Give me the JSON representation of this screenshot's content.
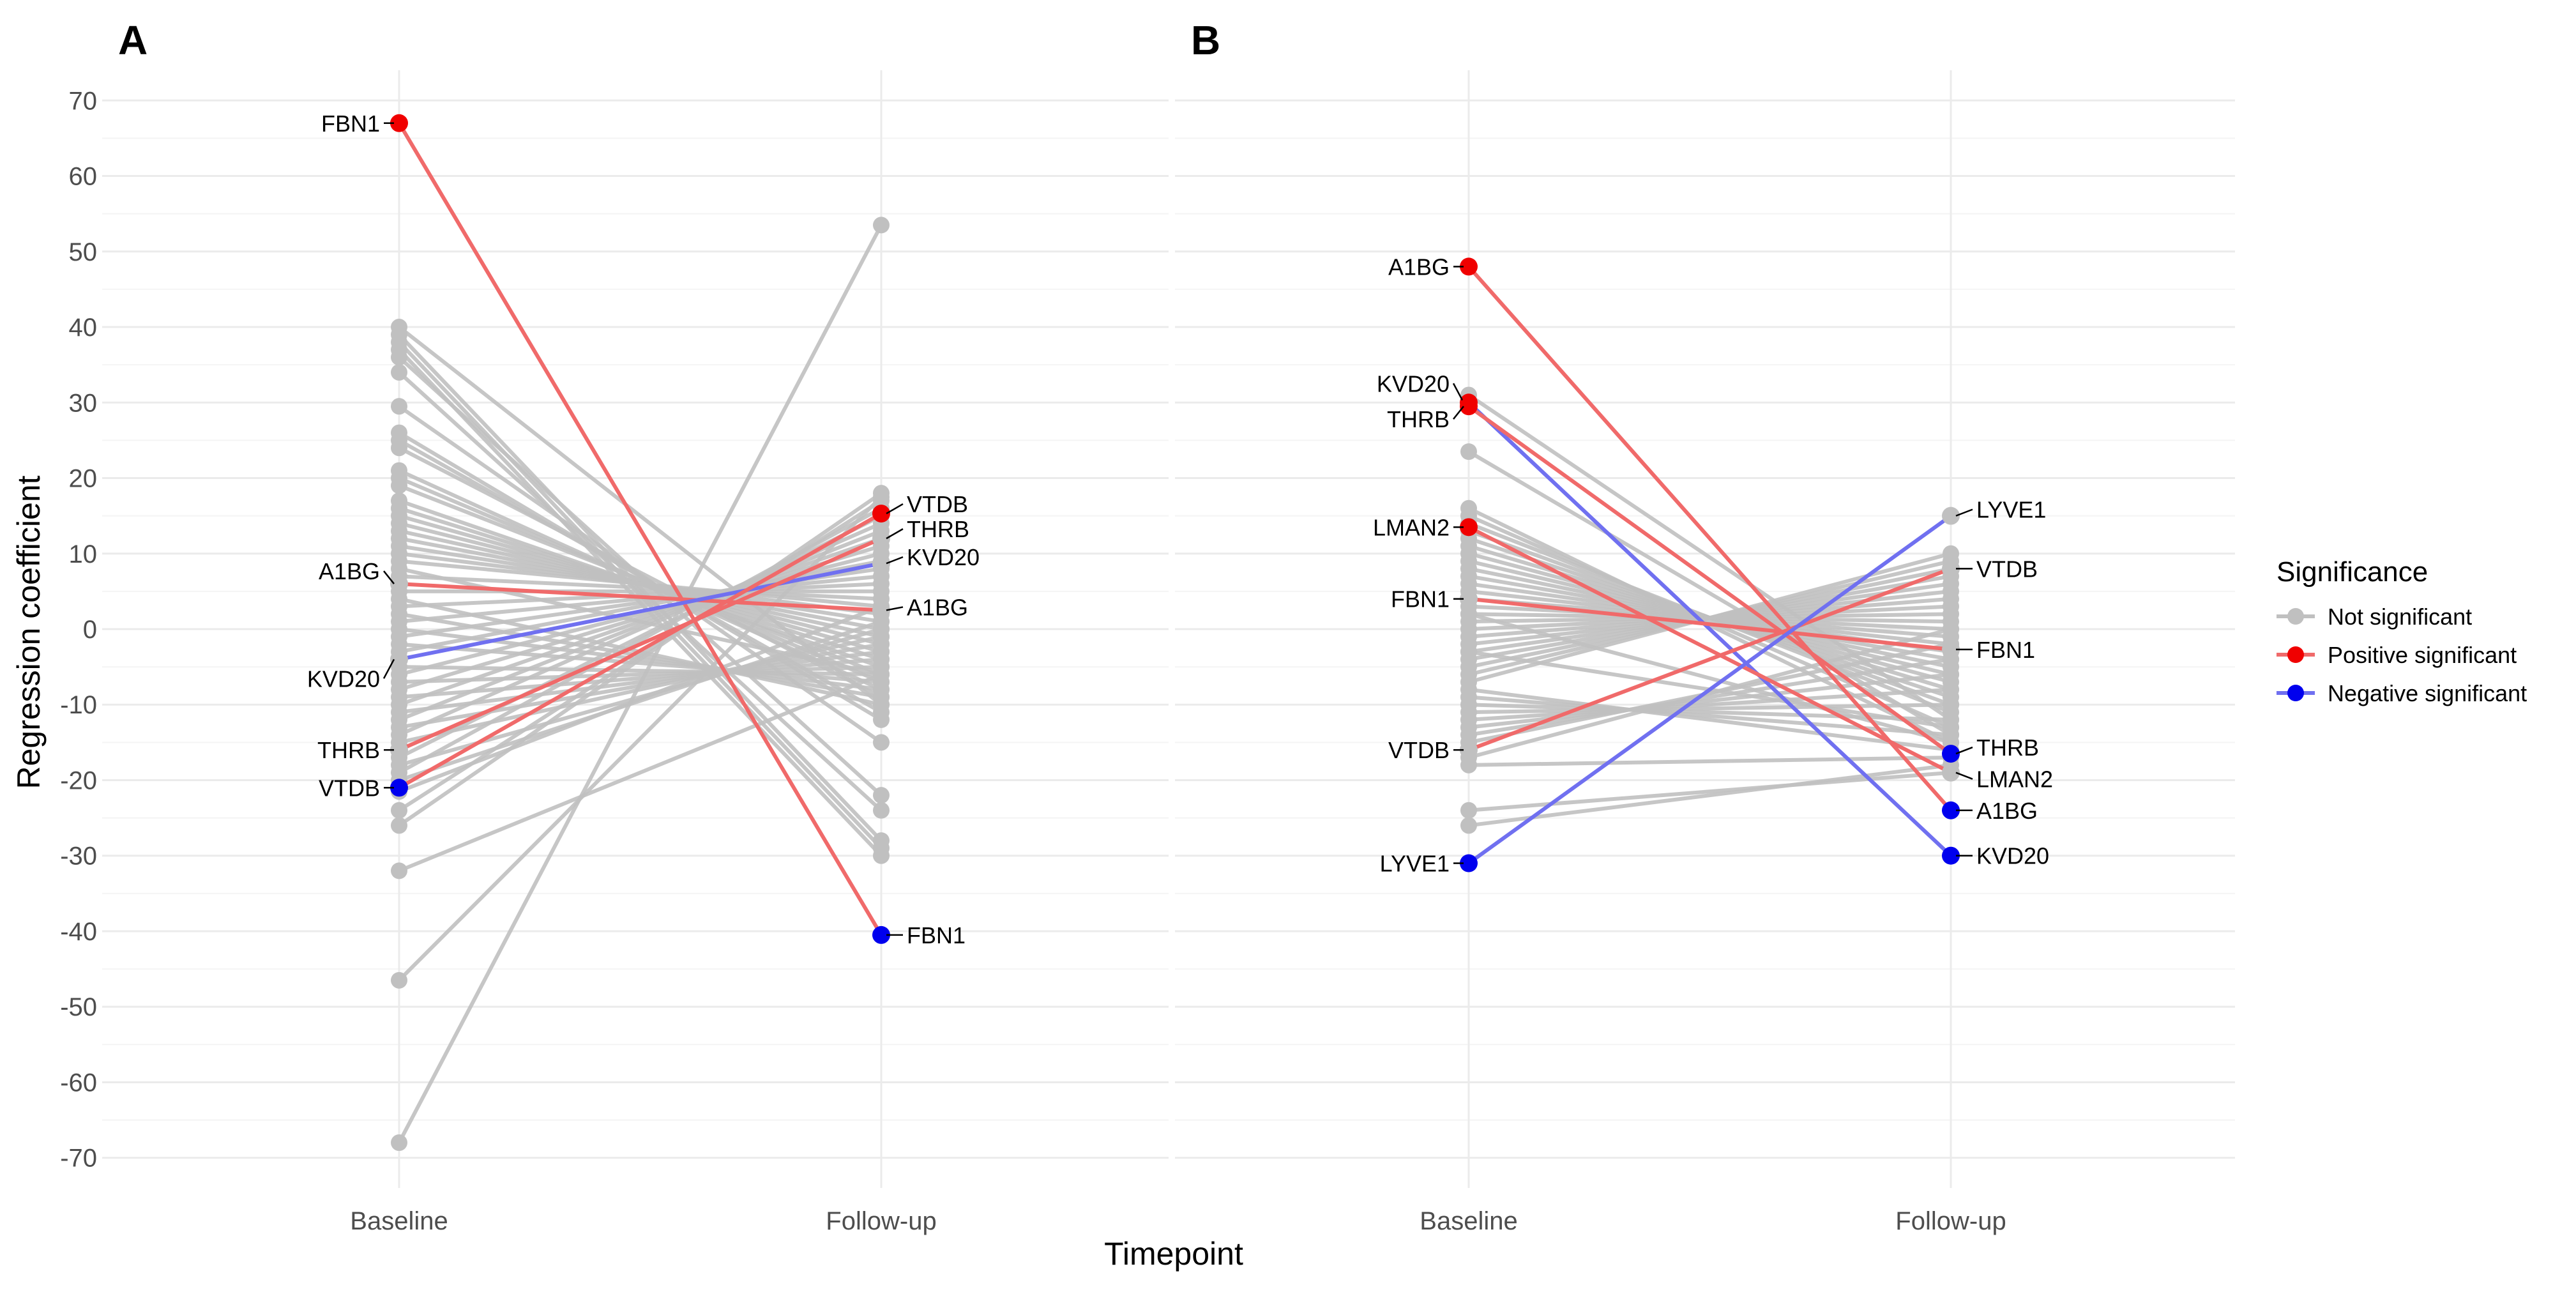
{
  "chart_data": {
    "type": "slope",
    "ylabel": "Regression coefficient",
    "xlabel": "Timepoint",
    "categories": [
      "Baseline",
      "Follow-up"
    ],
    "ylim": [
      -74,
      74
    ],
    "yticks": [
      70,
      60,
      50,
      40,
      30,
      20,
      10,
      0,
      -10,
      -20,
      -30,
      -40,
      -50,
      -60,
      -70
    ],
    "grid": true,
    "colors": {
      "not_significant": "#c0c0c0",
      "positive": "#f00000",
      "negative": "#0000ee",
      "positive_line": "#f06a6a",
      "negative_line": "#7070f0",
      "grid": "#ebebeb"
    },
    "legend": {
      "title": "Significance",
      "position": "right",
      "entries": [
        {
          "key": "not_significant",
          "label": "Not significant"
        },
        {
          "key": "positive",
          "label": "Positive significant"
        },
        {
          "key": "negative",
          "label": "Negative significant"
        }
      ]
    },
    "panels": [
      {
        "tag": "A",
        "highlighted": [
          {
            "gene": "FBN1",
            "baseline": 67,
            "followup": -40.5,
            "baseline_sig": "positive",
            "followup_sig": "negative",
            "line": "positive"
          },
          {
            "gene": "A1BG",
            "baseline": 6,
            "followup": 2.5,
            "baseline_sig": "none",
            "followup_sig": "none",
            "line": "positive"
          },
          {
            "gene": "KVD20",
            "baseline": -4,
            "followup": 8.7,
            "baseline_sig": "none",
            "followup_sig": "none",
            "line": "negative"
          },
          {
            "gene": "THRB",
            "baseline": -16,
            "followup": 12,
            "baseline_sig": "none",
            "followup_sig": "none",
            "line": "positive"
          },
          {
            "gene": "VTDB",
            "baseline": -21,
            "followup": 15.3,
            "baseline_sig": "negative",
            "followup_sig": "positive",
            "line": "positive"
          }
        ],
        "background": [
          [
            40,
            -10
          ],
          [
            39,
            -28
          ],
          [
            38,
            -29
          ],
          [
            37,
            -30
          ],
          [
            36,
            -22
          ],
          [
            34,
            -24
          ],
          [
            29.5,
            -15
          ],
          [
            26,
            -12
          ],
          [
            25,
            -11
          ],
          [
            24,
            -9
          ],
          [
            21,
            -8
          ],
          [
            20,
            -7
          ],
          [
            19,
            -6
          ],
          [
            17,
            -5
          ],
          [
            16,
            -4
          ],
          [
            15,
            -3
          ],
          [
            14,
            -2
          ],
          [
            13,
            -1
          ],
          [
            12,
            0
          ],
          [
            11,
            1
          ],
          [
            10,
            2
          ],
          [
            9,
            3
          ],
          [
            8,
            -6
          ],
          [
            7,
            4
          ],
          [
            5,
            5
          ],
          [
            4,
            -10
          ],
          [
            3,
            6
          ],
          [
            2,
            -9
          ],
          [
            1,
            7
          ],
          [
            0,
            -8
          ],
          [
            -1,
            8
          ],
          [
            -2,
            -7
          ],
          [
            -3,
            9
          ],
          [
            -5,
            -6
          ],
          [
            -6,
            10
          ],
          [
            -7,
            -5
          ],
          [
            -8,
            11
          ],
          [
            -9,
            -4
          ],
          [
            -10,
            12
          ],
          [
            -11,
            -3
          ],
          [
            -12,
            13
          ],
          [
            -13,
            -2
          ],
          [
            -14,
            14
          ],
          [
            -15,
            -1
          ],
          [
            -17,
            15
          ],
          [
            -18,
            0
          ],
          [
            -19,
            16
          ],
          [
            -20,
            1
          ],
          [
            -24,
            17
          ],
          [
            -32,
            -6
          ],
          [
            -46.5,
            17.5
          ],
          [
            -68,
            53.5
          ],
          [
            -26,
            18
          ],
          [
            -21.5,
            3
          ]
        ]
      },
      {
        "tag": "B",
        "highlighted": [
          {
            "gene": "A1BG",
            "baseline": 48,
            "followup": -24,
            "baseline_sig": "positive",
            "followup_sig": "negative",
            "line": "positive"
          },
          {
            "gene": "KVD20",
            "baseline": 30,
            "followup": -30,
            "baseline_sig": "positive",
            "followup_sig": "negative",
            "line": "negative"
          },
          {
            "gene": "THRB",
            "baseline": 29.5,
            "followup": -16.5,
            "baseline_sig": "positive",
            "followup_sig": "negative",
            "line": "positive"
          },
          {
            "gene": "LMAN2",
            "baseline": 13.5,
            "followup": -19,
            "baseline_sig": "positive",
            "followup_sig": "none",
            "line": "positive"
          },
          {
            "gene": "FBN1",
            "baseline": 4,
            "followup": -2.7,
            "baseline_sig": "none",
            "followup_sig": "none",
            "line": "positive"
          },
          {
            "gene": "VTDB",
            "baseline": -16,
            "followup": 8,
            "baseline_sig": "none",
            "followup_sig": "none",
            "line": "positive"
          },
          {
            "gene": "LYVE1",
            "baseline": -31,
            "followup": 15,
            "baseline_sig": "negative",
            "followup_sig": "none",
            "line": "negative"
          }
        ],
        "background": [
          [
            31,
            -12
          ],
          [
            23.5,
            -14
          ],
          [
            16,
            -15
          ],
          [
            15,
            -13
          ],
          [
            14,
            -11
          ],
          [
            13,
            -10
          ],
          [
            12,
            -9
          ],
          [
            11,
            -8
          ],
          [
            10,
            -7
          ],
          [
            9,
            -6
          ],
          [
            8,
            -5
          ],
          [
            7,
            -4
          ],
          [
            6,
            -3
          ],
          [
            5,
            -2
          ],
          [
            4,
            -1
          ],
          [
            3,
            0
          ],
          [
            2,
            1
          ],
          [
            1,
            2
          ],
          [
            0,
            3
          ],
          [
            -1,
            4
          ],
          [
            -2,
            5
          ],
          [
            -3,
            6
          ],
          [
            -4,
            7
          ],
          [
            -5,
            8
          ],
          [
            -6,
            9
          ],
          [
            -7,
            10
          ],
          [
            -8,
            -16
          ],
          [
            -9,
            -14
          ],
          [
            -10,
            -12
          ],
          [
            -11,
            -10
          ],
          [
            -12,
            -8
          ],
          [
            -13,
            -6
          ],
          [
            -14,
            -4
          ],
          [
            -15,
            -2
          ],
          [
            -17,
            0
          ],
          [
            -18,
            -17
          ],
          [
            -24,
            -19
          ],
          [
            -26,
            -18
          ],
          [
            -3,
            -13
          ],
          [
            2,
            -15
          ]
        ]
      }
    ]
  }
}
